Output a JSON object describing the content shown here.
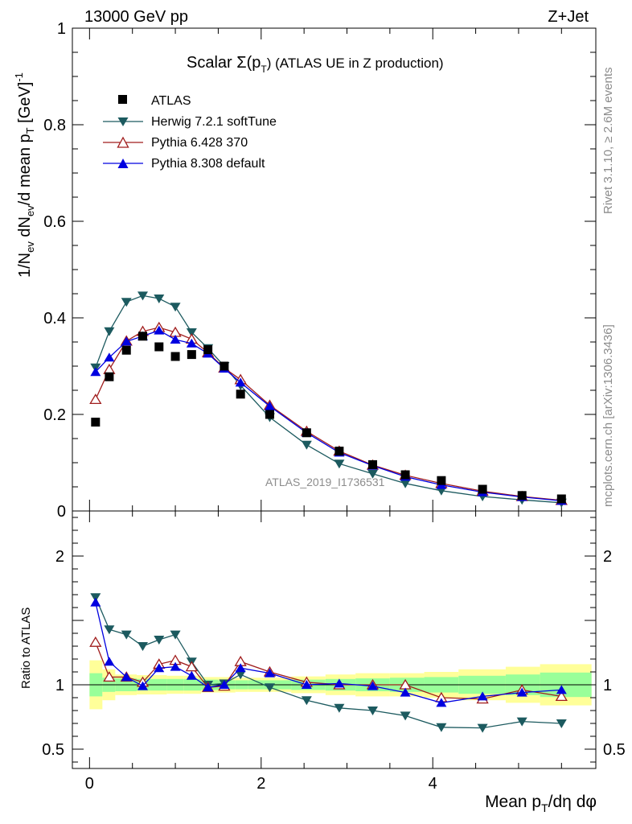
{
  "header": {
    "left": "13000 GeV pp",
    "right": "Z+Jet",
    "side_top": "Rivet 3.1.10, ≥ 2.6M events",
    "side_bottom": "mcplots.cern.ch [arXiv:1306.3436]",
    "watermark": "ATLAS_2019_I1736531"
  },
  "chart_data": {
    "type": "line",
    "title_prefix": "Scalar Σ(p",
    "title_sub": "T",
    "title_suffix": ") (ATLAS UE in Z production)",
    "ylabel_main": "1/Nₑᵥ dNₑᵥ/d mean pₜ [GeV]⁻¹",
    "ylabel_ratio": "Ratio to ATLAS",
    "xlabel": "Mean pₜ/dη dφ",
    "xlim": [
      -0.2,
      5.9
    ],
    "ylim_main": [
      0,
      1
    ],
    "ylim_ratio": [
      0.35,
      2.35
    ],
    "x_ticks": [
      "0",
      "2",
      "4"
    ],
    "y_ticks_main": [
      "0",
      "0.2",
      "0.4",
      "0.6",
      "0.8",
      "1"
    ],
    "y_ticks_ratio": [
      "0.5",
      "1",
      "2"
    ],
    "bin_edges": [
      0,
      0.15,
      0.3,
      0.55,
      0.7,
      0.9,
      1.1,
      1.3,
      1.5,
      1.7,
      1.85,
      2.35,
      2.75,
      3.1,
      3.5,
      3.9,
      4.3,
      4.85,
      5.25,
      5.85
    ],
    "x": [
      0.07,
      0.23,
      0.43,
      0.62,
      0.81,
      1.0,
      1.19,
      1.38,
      1.57,
      1.76,
      2.1,
      2.53,
      2.91,
      3.3,
      3.68,
      4.1,
      4.58,
      5.04,
      5.5
    ],
    "band_inner": [
      0.09,
      0.055,
      0.05,
      0.045,
      0.045,
      0.045,
      0.045,
      0.04,
      0.035,
      0.035,
      0.035,
      0.04,
      0.045,
      0.05,
      0.055,
      0.06,
      0.07,
      0.08,
      0.095
    ],
    "band_outer": [
      0.19,
      0.12,
      0.08,
      0.075,
      0.075,
      0.07,
      0.07,
      0.06,
      0.06,
      0.055,
      0.055,
      0.065,
      0.08,
      0.09,
      0.09,
      0.1,
      0.12,
      0.14,
      0.16
    ],
    "series": [
      {
        "name": "ATLAS",
        "color": "#000000",
        "marker": "square",
        "values": [
          0.184,
          0.278,
          0.333,
          0.362,
          0.34,
          0.32,
          0.324,
          0.334,
          0.3,
          0.242,
          0.2,
          0.162,
          0.124,
          0.096,
          0.075,
          0.063,
          0.045,
          0.032,
          0.025
        ],
        "ratio": [
          1,
          1,
          1,
          1,
          1,
          1,
          1,
          1,
          1,
          1,
          1,
          1,
          1,
          1,
          1,
          1,
          1,
          1,
          1
        ]
      },
      {
        "name": "Herwig 7.2.1 softTune",
        "color": "#1c5a5f",
        "marker": "triangle-down",
        "values": [
          0.297,
          0.372,
          0.433,
          0.446,
          0.44,
          0.423,
          0.37,
          0.337,
          0.3,
          0.26,
          0.194,
          0.137,
          0.098,
          0.077,
          0.057,
          0.042,
          0.03,
          0.023,
          0.017
        ],
        "ratio": [
          1.68,
          1.43,
          1.39,
          1.3,
          1.35,
          1.39,
          1.18,
          1.0,
          1.01,
          1.08,
          0.98,
          0.88,
          0.82,
          0.8,
          0.76,
          0.67,
          0.665,
          0.715,
          0.7
        ]
      },
      {
        "name": "Pythia 6.428 370",
        "color": "#a01c1c",
        "marker": "triangle-up-open",
        "values": [
          0.231,
          0.293,
          0.352,
          0.372,
          0.38,
          0.37,
          0.356,
          0.328,
          0.296,
          0.272,
          0.219,
          0.165,
          0.124,
          0.095,
          0.074,
          0.057,
          0.041,
          0.03,
          0.022
        ],
        "ratio": [
          1.33,
          1.06,
          1.06,
          1.02,
          1.16,
          1.19,
          1.14,
          0.98,
          0.99,
          1.18,
          1.1,
          1.02,
          1.0,
          1.0,
          1.0,
          0.9,
          0.89,
          0.96,
          0.91
        ]
      },
      {
        "name": "Pythia 8.308 default",
        "color": "#0000e0",
        "marker": "triangle-up",
        "values": [
          0.288,
          0.318,
          0.351,
          0.362,
          0.374,
          0.355,
          0.347,
          0.326,
          0.295,
          0.266,
          0.217,
          0.162,
          0.121,
          0.094,
          0.071,
          0.054,
          0.039,
          0.029,
          0.021
        ],
        "ratio": [
          1.64,
          1.18,
          1.06,
          0.99,
          1.13,
          1.14,
          1.07,
          0.98,
          1.0,
          1.13,
          1.09,
          1.0,
          1.01,
          0.99,
          0.94,
          0.86,
          0.91,
          0.94,
          0.96
        ]
      }
    ]
  }
}
